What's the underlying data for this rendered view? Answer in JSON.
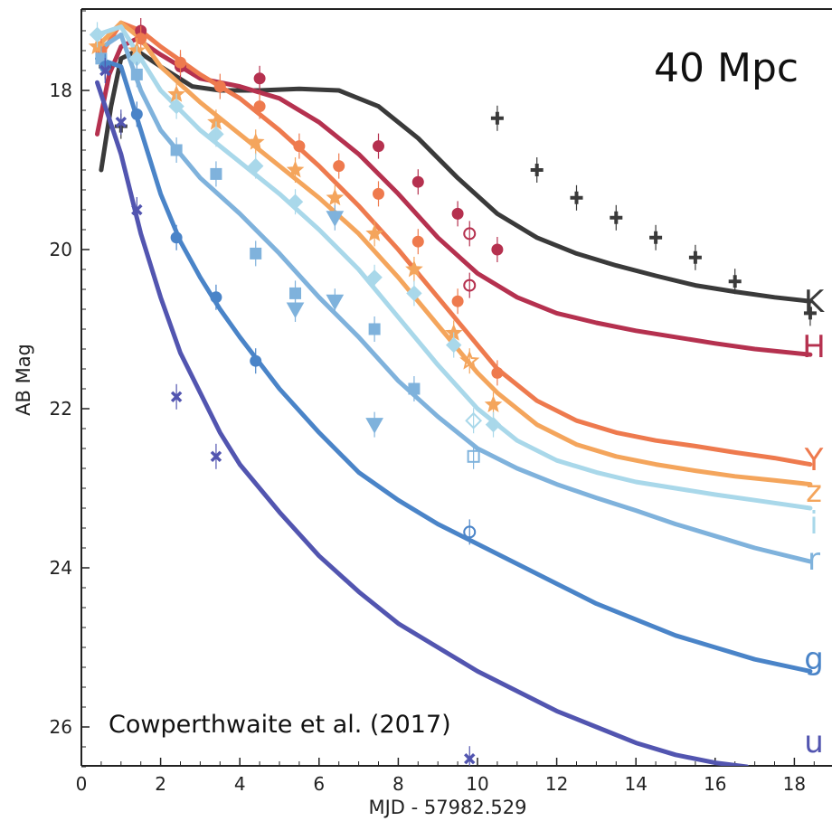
{
  "chart_data": {
    "type": "line",
    "title": "40 Mpc",
    "annotation": "Cowperthwaite et al. (2017)",
    "xlabel": "MJD - 57982.529",
    "ylabel": "AB Mag",
    "xlim": [
      0,
      19.5
    ],
    "ylim": [
      26.5,
      16.8
    ],
    "y_inverted": true,
    "grid": false,
    "xticks": [
      0,
      2,
      4,
      6,
      8,
      10,
      12,
      14,
      16,
      18
    ],
    "yticks": [
      18,
      20,
      22,
      24,
      26
    ],
    "series": [
      {
        "name": "K",
        "color": "#3a3a3a",
        "marker": "plus",
        "model": [
          [
            0.5,
            19.0
          ],
          [
            0.75,
            18.2
          ],
          [
            1.0,
            17.6
          ],
          [
            1.4,
            17.5
          ],
          [
            2.0,
            17.7
          ],
          [
            2.8,
            17.95
          ],
          [
            3.5,
            18.0
          ],
          [
            4.5,
            18.0
          ],
          [
            5.5,
            17.98
          ],
          [
            6.5,
            18.0
          ],
          [
            7.5,
            18.2
          ],
          [
            8.5,
            18.6
          ],
          [
            9.5,
            19.1
          ],
          [
            10.5,
            19.55
          ],
          [
            11.5,
            19.85
          ],
          [
            12.5,
            20.05
          ],
          [
            13.5,
            20.2
          ],
          [
            14.5,
            20.33
          ],
          [
            15.5,
            20.45
          ],
          [
            16.5,
            20.53
          ],
          [
            17.5,
            20.6
          ],
          [
            18.4,
            20.65
          ]
        ],
        "points": [
          [
            0.6,
            17.7
          ],
          [
            1.0,
            18.45
          ],
          [
            10.5,
            18.35
          ],
          [
            11.5,
            19.0
          ],
          [
            12.5,
            19.35
          ],
          [
            13.5,
            19.6
          ],
          [
            14.5,
            19.85
          ],
          [
            15.5,
            20.1
          ],
          [
            16.5,
            20.4
          ],
          [
            18.4,
            20.8
          ]
        ]
      },
      {
        "name": "H",
        "color": "#b5314f",
        "marker": "circle",
        "model": [
          [
            0.4,
            18.55
          ],
          [
            0.7,
            17.8
          ],
          [
            1.0,
            17.45
          ],
          [
            1.4,
            17.35
          ],
          [
            2.0,
            17.55
          ],
          [
            3.0,
            17.85
          ],
          [
            4.0,
            17.95
          ],
          [
            5.0,
            18.1
          ],
          [
            6.0,
            18.4
          ],
          [
            7.0,
            18.8
          ],
          [
            8.0,
            19.3
          ],
          [
            9.0,
            19.85
          ],
          [
            10.0,
            20.3
          ],
          [
            11.0,
            20.6
          ],
          [
            12.0,
            20.8
          ],
          [
            13.0,
            20.92
          ],
          [
            14.0,
            21.02
          ],
          [
            15.0,
            21.1
          ],
          [
            16.0,
            21.18
          ],
          [
            17.0,
            21.25
          ],
          [
            18.4,
            21.32
          ]
        ],
        "points": [
          [
            1.5,
            17.25
          ],
          [
            2.5,
            17.7
          ],
          [
            4.5,
            17.85
          ],
          [
            7.5,
            18.7
          ],
          [
            8.5,
            19.15
          ],
          [
            9.5,
            19.55
          ],
          [
            10.5,
            20.0
          ]
        ],
        "open_points": [
          [
            9.8,
            19.8
          ],
          [
            9.8,
            20.45
          ]
        ]
      },
      {
        "name": "Y",
        "color": "#ee7a4e",
        "marker": "hexagon",
        "model": [
          [
            0.5,
            17.55
          ],
          [
            1.0,
            17.15
          ],
          [
            1.5,
            17.25
          ],
          [
            2.0,
            17.45
          ],
          [
            3.0,
            17.8
          ],
          [
            4.0,
            18.1
          ],
          [
            5.0,
            18.5
          ],
          [
            6.0,
            18.95
          ],
          [
            7.0,
            19.45
          ],
          [
            8.0,
            20.0
          ],
          [
            9.0,
            20.6
          ],
          [
            10.0,
            21.2
          ],
          [
            10.5,
            21.5
          ],
          [
            11.5,
            21.9
          ],
          [
            12.5,
            22.15
          ],
          [
            13.5,
            22.3
          ],
          [
            14.5,
            22.4
          ],
          [
            15.5,
            22.47
          ],
          [
            16.5,
            22.55
          ],
          [
            17.5,
            22.62
          ],
          [
            18.4,
            22.7
          ]
        ],
        "points": [
          [
            0.5,
            17.5
          ],
          [
            1.5,
            17.35
          ],
          [
            2.5,
            17.65
          ],
          [
            3.5,
            17.95
          ],
          [
            4.5,
            18.2
          ],
          [
            5.5,
            18.7
          ],
          [
            6.5,
            18.95
          ],
          [
            7.5,
            19.3
          ],
          [
            8.5,
            19.9
          ],
          [
            9.5,
            20.65
          ],
          [
            10.5,
            21.55
          ]
        ]
      },
      {
        "name": "z",
        "color": "#f4a55c",
        "marker": "star",
        "model": [
          [
            0.4,
            17.45
          ],
          [
            1.0,
            17.15
          ],
          [
            1.5,
            17.35
          ],
          [
            2.0,
            17.7
          ],
          [
            3.0,
            18.15
          ],
          [
            4.0,
            18.55
          ],
          [
            5.0,
            18.95
          ],
          [
            6.0,
            19.35
          ],
          [
            7.0,
            19.8
          ],
          [
            8.0,
            20.35
          ],
          [
            9.0,
            20.95
          ],
          [
            10.0,
            21.55
          ],
          [
            10.5,
            21.8
          ],
          [
            11.5,
            22.2
          ],
          [
            12.5,
            22.45
          ],
          [
            13.5,
            22.6
          ],
          [
            14.5,
            22.7
          ],
          [
            15.5,
            22.78
          ],
          [
            16.5,
            22.85
          ],
          [
            17.5,
            22.9
          ],
          [
            18.4,
            22.95
          ]
        ],
        "points": [
          [
            0.4,
            17.45
          ],
          [
            1.4,
            17.5
          ],
          [
            2.4,
            18.05
          ],
          [
            3.4,
            18.4
          ],
          [
            4.4,
            18.65
          ],
          [
            5.4,
            19.0
          ],
          [
            6.4,
            19.35
          ],
          [
            7.4,
            19.8
          ],
          [
            8.4,
            20.25
          ],
          [
            9.4,
            21.05
          ],
          [
            10.4,
            21.95
          ]
        ],
        "open_points": [
          [
            9.8,
            21.4
          ]
        ]
      },
      {
        "name": "i",
        "color": "#a9d8ea",
        "marker": "diamond",
        "model": [
          [
            0.4,
            17.3
          ],
          [
            1.0,
            17.2
          ],
          [
            1.5,
            17.6
          ],
          [
            2.0,
            18.0
          ],
          [
            3.0,
            18.5
          ],
          [
            4.0,
            18.9
          ],
          [
            5.0,
            19.3
          ],
          [
            6.0,
            19.75
          ],
          [
            7.0,
            20.25
          ],
          [
            8.0,
            20.85
          ],
          [
            9.0,
            21.45
          ],
          [
            10.0,
            22.0
          ],
          [
            11.0,
            22.4
          ],
          [
            12.0,
            22.65
          ],
          [
            13.0,
            22.8
          ],
          [
            14.0,
            22.92
          ],
          [
            15.0,
            23.0
          ],
          [
            16.0,
            23.08
          ],
          [
            17.0,
            23.15
          ],
          [
            18.4,
            23.25
          ]
        ],
        "points": [
          [
            0.4,
            17.3
          ],
          [
            1.4,
            17.6
          ],
          [
            2.4,
            18.2
          ],
          [
            3.4,
            18.55
          ],
          [
            4.4,
            18.95
          ],
          [
            5.4,
            19.4
          ],
          [
            7.4,
            20.35
          ],
          [
            8.4,
            20.55
          ],
          [
            9.4,
            21.2
          ],
          [
            10.4,
            22.2
          ]
        ],
        "open_points": [
          [
            9.9,
            22.15
          ]
        ]
      },
      {
        "name": "r",
        "color": "#7fb2dc",
        "marker": "square",
        "model": [
          [
            0.4,
            17.5
          ],
          [
            1.0,
            17.3
          ],
          [
            1.5,
            18.0
          ],
          [
            2.0,
            18.5
          ],
          [
            3.0,
            19.1
          ],
          [
            4.0,
            19.55
          ],
          [
            5.0,
            20.05
          ],
          [
            6.0,
            20.6
          ],
          [
            7.0,
            21.1
          ],
          [
            8.0,
            21.65
          ],
          [
            9.0,
            22.1
          ],
          [
            10.0,
            22.5
          ],
          [
            11.0,
            22.75
          ],
          [
            12.0,
            22.95
          ],
          [
            13.0,
            23.12
          ],
          [
            14.0,
            23.28
          ],
          [
            15.0,
            23.45
          ],
          [
            16.0,
            23.6
          ],
          [
            17.0,
            23.75
          ],
          [
            18.4,
            23.92
          ]
        ],
        "points": [
          [
            0.5,
            17.6
          ],
          [
            1.4,
            17.8
          ],
          [
            2.4,
            18.75
          ],
          [
            3.4,
            19.05
          ],
          [
            4.4,
            20.05
          ],
          [
            5.4,
            20.55
          ],
          [
            7.4,
            21.0
          ],
          [
            8.4,
            21.75
          ]
        ],
        "triangles": [
          [
            5.4,
            20.75
          ],
          [
            6.4,
            19.6
          ],
          [
            6.4,
            20.65
          ],
          [
            7.4,
            22.2
          ]
        ],
        "open_points": [
          [
            9.9,
            22.6
          ]
        ]
      },
      {
        "name": "g",
        "color": "#4a84c8",
        "marker": "circle",
        "model": [
          [
            0.4,
            17.6
          ],
          [
            1.0,
            17.7
          ],
          [
            1.5,
            18.5
          ],
          [
            2.0,
            19.3
          ],
          [
            2.5,
            19.9
          ],
          [
            3.0,
            20.35
          ],
          [
            3.5,
            20.75
          ],
          [
            4.0,
            21.1
          ],
          [
            5.0,
            21.75
          ],
          [
            6.0,
            22.3
          ],
          [
            7.0,
            22.8
          ],
          [
            8.0,
            23.15
          ],
          [
            9.0,
            23.45
          ],
          [
            10.0,
            23.7
          ],
          [
            11.0,
            23.95
          ],
          [
            12.0,
            24.2
          ],
          [
            13.0,
            24.45
          ],
          [
            14.0,
            24.65
          ],
          [
            15.0,
            24.85
          ],
          [
            16.0,
            25.0
          ],
          [
            17.0,
            25.15
          ],
          [
            18.4,
            25.3
          ]
        ],
        "points": [
          [
            0.6,
            17.7
          ],
          [
            1.4,
            18.3
          ],
          [
            2.4,
            19.85
          ],
          [
            3.4,
            20.6
          ],
          [
            4.4,
            21.4
          ]
        ],
        "open_points": [
          [
            9.8,
            23.55
          ]
        ]
      },
      {
        "name": "u",
        "color": "#5255b0",
        "marker": "x",
        "model": [
          [
            0.4,
            17.9
          ],
          [
            1.0,
            18.8
          ],
          [
            1.5,
            19.8
          ],
          [
            2.0,
            20.6
          ],
          [
            2.5,
            21.3
          ],
          [
            3.0,
            21.8
          ],
          [
            3.5,
            22.3
          ],
          [
            4.0,
            22.7
          ],
          [
            5.0,
            23.3
          ],
          [
            6.0,
            23.85
          ],
          [
            7.0,
            24.3
          ],
          [
            8.0,
            24.7
          ],
          [
            9.0,
            25.0
          ],
          [
            10.0,
            25.3
          ],
          [
            11.0,
            25.55
          ],
          [
            12.0,
            25.8
          ],
          [
            13.0,
            26.0
          ],
          [
            14.0,
            26.2
          ],
          [
            15.0,
            26.35
          ],
          [
            16.0,
            26.45
          ],
          [
            16.8,
            26.5
          ]
        ],
        "points": [
          [
            0.6,
            17.75
          ],
          [
            1.0,
            18.4
          ],
          [
            1.4,
            19.5
          ],
          [
            2.4,
            21.85
          ],
          [
            3.4,
            22.6
          ]
        ],
        "open_points": [
          [
            9.8,
            26.4
          ]
        ]
      }
    ]
  }
}
